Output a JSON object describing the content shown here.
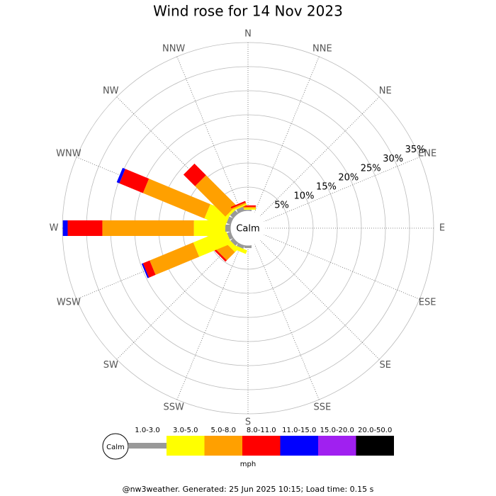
{
  "chart_data": {
    "type": "windrose",
    "title": "Wind rose for 14 Nov 2023",
    "directions": [
      "N",
      "NNE",
      "NE",
      "ENE",
      "E",
      "ESE",
      "SE",
      "SSE",
      "S",
      "SSW",
      "SW",
      "WSW",
      "W",
      "WNW",
      "NW",
      "NNW"
    ],
    "calm_label": "Calm",
    "rlim": [
      0,
      35
    ],
    "rticks": [
      {
        "value": 5,
        "label": "5%"
      },
      {
        "value": 10,
        "label": "10%"
      },
      {
        "value": 15,
        "label": "15%"
      },
      {
        "value": 20,
        "label": "20%"
      },
      {
        "value": 25,
        "label": "25%"
      },
      {
        "value": 30,
        "label": "30%"
      },
      {
        "value": 35,
        "label": "35%"
      }
    ],
    "unit": "mph",
    "series": [
      {
        "name": "1.0-3.0",
        "color": "#999999",
        "values": [
          0.3,
          0,
          0,
          0,
          0,
          0,
          0,
          0,
          0.6,
          0.8,
          0.9,
          0.9,
          1.2,
          1,
          1,
          1
        ]
      },
      {
        "name": "3.0-5.0",
        "color": "#ffff00",
        "values": [
          0.3,
          0,
          0,
          0,
          0,
          0,
          0,
          0,
          0,
          0.8,
          1,
          7.2,
          6.5,
          4.6,
          0.5,
          0.3
        ]
      },
      {
        "name": "5.0-8.0",
        "color": "#ffa000",
        "values": [
          0.3,
          0,
          0,
          0,
          0,
          0,
          0,
          0,
          0,
          0,
          2.4,
          9.8,
          19,
          13.8,
          8.9,
          0.3
        ]
      },
      {
        "name": "8.0-11.0",
        "color": "#ff0000",
        "values": [
          0.3,
          0,
          0,
          0,
          0,
          0,
          0,
          0,
          0,
          0,
          0.4,
          1.5,
          7.2,
          5.3,
          3.4,
          0.3
        ]
      },
      {
        "name": "11.0-15.0",
        "color": "#0000ff",
        "values": [
          0,
          0,
          0,
          0,
          0,
          0,
          0,
          0,
          0,
          0,
          0,
          0.3,
          1,
          0.6,
          0,
          0
        ]
      },
      {
        "name": "15.0-20.0",
        "color": "#a020f0",
        "values": [
          0,
          0,
          0,
          0,
          0,
          0,
          0,
          0,
          0,
          0,
          0,
          0,
          0,
          0,
          0,
          0
        ]
      },
      {
        "name": "20.0-50.0",
        "color": "#000000",
        "values": [
          0,
          0,
          0,
          0,
          0,
          0,
          0,
          0,
          0,
          0,
          0,
          0,
          0,
          0,
          0,
          0
        ]
      }
    ]
  },
  "footer": "@nw3weather. Generated: 25 Jun 2025 10:15; Load time: 0.15 s"
}
